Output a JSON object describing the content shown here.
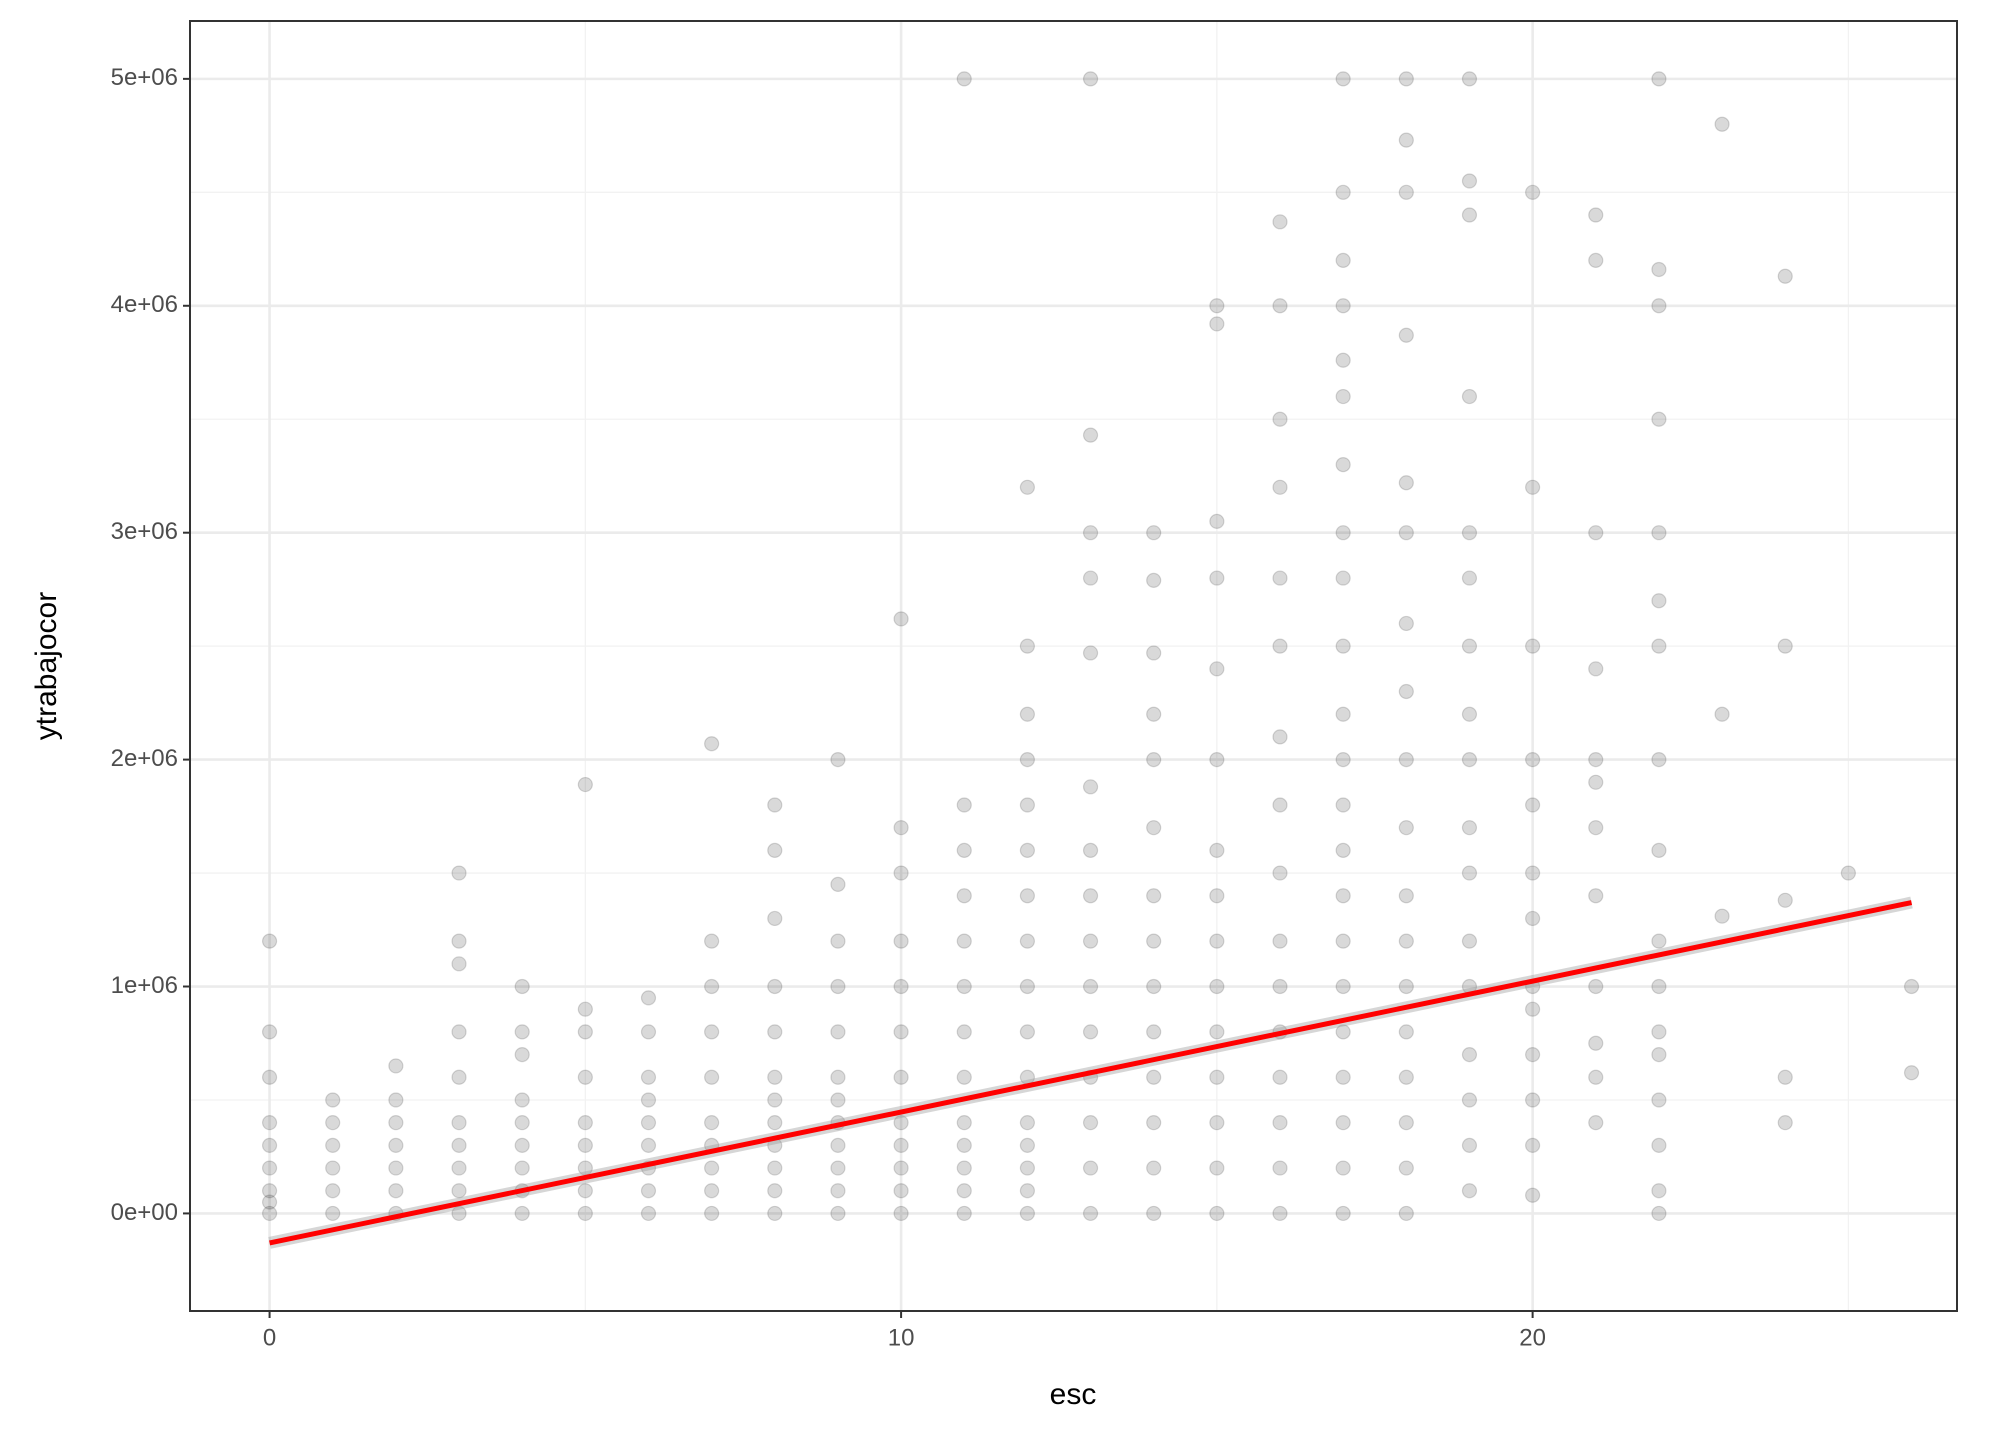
{
  "chart_data": {
    "type": "scatter",
    "x_label": "esc",
    "y_label": "ytrabajocor",
    "x": [
      0,
      1,
      2,
      3,
      4,
      5,
      6,
      7,
      8,
      9,
      10,
      11,
      12,
      13,
      14,
      15,
      16,
      17,
      18,
      19,
      20,
      21,
      22,
      23,
      24,
      25,
      26
    ],
    "values": [
      [
        0,
        50000,
        100000,
        200000,
        300000,
        400000,
        600000,
        800000,
        1200000
      ],
      [
        0,
        100000,
        200000,
        300000,
        400000,
        500000
      ],
      [
        0,
        100000,
        200000,
        300000,
        400000,
        500000,
        650000
      ],
      [
        0,
        100000,
        200000,
        300000,
        400000,
        600000,
        800000,
        1100000,
        1200000,
        1500000
      ],
      [
        0,
        100000,
        200000,
        300000,
        400000,
        500000,
        700000,
        800000,
        1000000
      ],
      [
        0,
        100000,
        200000,
        300000,
        400000,
        600000,
        800000,
        900000,
        1890000
      ],
      [
        0,
        100000,
        200000,
        300000,
        400000,
        500000,
        600000,
        800000,
        950000
      ],
      [
        0,
        100000,
        200000,
        300000,
        400000,
        600000,
        800000,
        1000000,
        1200000,
        2070000
      ],
      [
        0,
        100000,
        200000,
        300000,
        400000,
        500000,
        600000,
        800000,
        1000000,
        1300000,
        1600000,
        1800000
      ],
      [
        0,
        100000,
        200000,
        300000,
        400000,
        500000,
        600000,
        800000,
        1000000,
        1200000,
        1450000,
        2000000
      ],
      [
        0,
        100000,
        200000,
        300000,
        400000,
        600000,
        800000,
        1000000,
        1200000,
        1500000,
        1700000,
        2620000
      ],
      [
        0,
        100000,
        200000,
        300000,
        400000,
        600000,
        800000,
        1000000,
        1200000,
        1400000,
        1600000,
        1800000,
        5000000
      ],
      [
        0,
        100000,
        200000,
        300000,
        400000,
        600000,
        800000,
        1000000,
        1200000,
        1400000,
        1600000,
        1800000,
        2000000,
        2200000,
        2500000,
        3200000
      ],
      [
        0,
        200000,
        400000,
        600000,
        800000,
        1000000,
        1200000,
        1400000,
        1600000,
        1880000,
        2470000,
        2800000,
        3000000,
        3430000,
        5000000
      ],
      [
        0,
        200000,
        400000,
        600000,
        800000,
        1000000,
        1200000,
        1400000,
        1700000,
        2000000,
        2200000,
        2470000,
        2790000,
        3000000
      ],
      [
        0,
        200000,
        400000,
        600000,
        800000,
        1000000,
        1200000,
        1400000,
        1600000,
        2000000,
        2400000,
        2800000,
        3050000,
        3920000,
        4000000
      ],
      [
        0,
        200000,
        400000,
        600000,
        800000,
        1000000,
        1200000,
        1500000,
        1800000,
        2100000,
        2500000,
        2800000,
        3200000,
        3500000,
        4000000,
        4370000
      ],
      [
        0,
        200000,
        400000,
        600000,
        800000,
        1000000,
        1200000,
        1400000,
        1600000,
        1800000,
        2000000,
        2200000,
        2500000,
        2800000,
        3000000,
        3300000,
        3600000,
        3760000,
        4000000,
        4200000,
        4500000,
        5000000
      ],
      [
        0,
        200000,
        400000,
        600000,
        800000,
        1000000,
        1200000,
        1400000,
        1700000,
        2000000,
        2300000,
        2600000,
        3000000,
        3220000,
        3870000,
        4500000,
        4730000,
        5000000
      ],
      [
        100000,
        300000,
        500000,
        700000,
        1000000,
        1200000,
        1500000,
        1700000,
        2000000,
        2200000,
        2500000,
        2800000,
        3000000,
        3600000,
        4400000,
        4550000,
        5000000
      ],
      [
        80000,
        300000,
        500000,
        700000,
        900000,
        1000000,
        1300000,
        1500000,
        1800000,
        2000000,
        2500000,
        3200000,
        4500000
      ],
      [
        400000,
        600000,
        750000,
        1000000,
        1400000,
        1700000,
        1900000,
        2000000,
        2400000,
        3000000,
        4200000,
        4400000
      ],
      [
        0,
        100000,
        300000,
        500000,
        700000,
        800000,
        1000000,
        1200000,
        1600000,
        2000000,
        2500000,
        2700000,
        3000000,
        3500000,
        4000000,
        4160000,
        5000000
      ],
      [
        1310000,
        2200000,
        4800000
      ],
      [
        400000,
        600000,
        1380000,
        2500000,
        4130000
      ],
      [
        1500000
      ],
      [
        620000,
        1000000
      ]
    ],
    "color": "#000000",
    "alpha": 0.15,
    "fit": {
      "x": [
        0,
        26
      ],
      "values": [
        -130000,
        1370000
      ],
      "color": "#ff0000"
    },
    "xlim": [
      -1.26,
      26.72
    ],
    "ylim": [
      -430000,
      5255000
    ],
    "xticks": [
      0,
      10,
      20
    ],
    "yticks": [
      {
        "value": 0,
        "label": "0e+00"
      },
      {
        "value": 1000000,
        "label": "1e+06"
      },
      {
        "value": 2000000,
        "label": "2e+06"
      },
      {
        "value": 3000000,
        "label": "3e+06"
      },
      {
        "value": 4000000,
        "label": "4e+06"
      },
      {
        "value": 5000000,
        "label": "5e+06"
      }
    ],
    "minor_xticks": [
      5,
      15,
      25
    ],
    "minor_yticks": [
      500000,
      1500000,
      2500000,
      3500000,
      4500000
    ],
    "grid": true
  }
}
